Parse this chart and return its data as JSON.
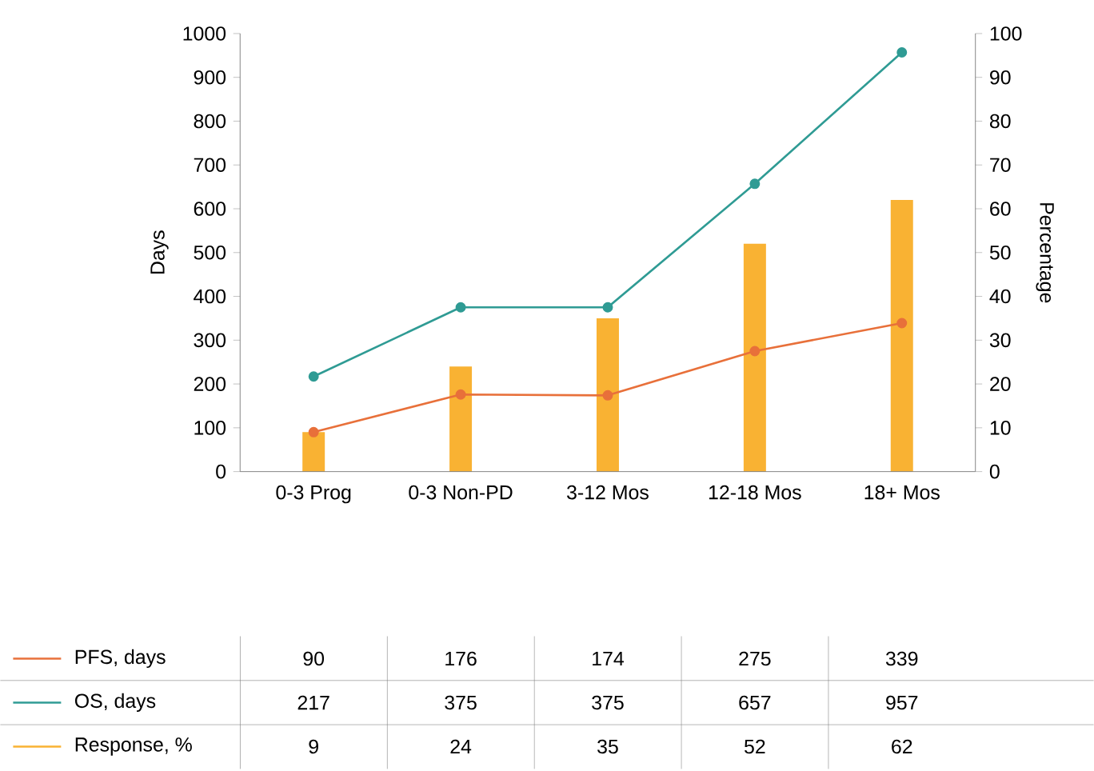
{
  "chart_data": {
    "type": "line",
    "categories": [
      "0-3 Prog",
      "0-3 Non-PD",
      "3-12 Mos",
      "12-18 Mos",
      "18+ Mos"
    ],
    "series": [
      {
        "name": "PFS, days",
        "color": "#e8703a",
        "values": [
          90,
          176,
          174,
          275,
          339
        ],
        "value_labels": [
          "90",
          "176",
          "174",
          "275",
          "339"
        ],
        "marker": "circle"
      },
      {
        "name": "OS, days",
        "color": "#2f9b94",
        "values": [
          217,
          375,
          375,
          657,
          957
        ],
        "value_labels": [
          "217",
          "375",
          "375",
          "657",
          "957"
        ],
        "marker": "circle"
      },
      {
        "name": "Response, %",
        "color": "#f9b233",
        "type": "bar",
        "axis": "y2",
        "values": [
          9,
          24,
          35,
          52,
          62
        ],
        "value_labels": [
          "9",
          "24",
          "35",
          "52",
          "62"
        ]
      }
    ],
    "ylabel": "Days",
    "y2label": "Percentage",
    "ylim": [
      0,
      1000
    ],
    "yticks": [
      0,
      100,
      200,
      300,
      400,
      500,
      600,
      700,
      800,
      900,
      1000
    ],
    "y2lim": [
      0,
      100
    ],
    "y2ticks": [
      0,
      10,
      20,
      30,
      40,
      50,
      60,
      70,
      80,
      90,
      100
    ],
    "legend": "bottom",
    "line_style": "solid"
  }
}
